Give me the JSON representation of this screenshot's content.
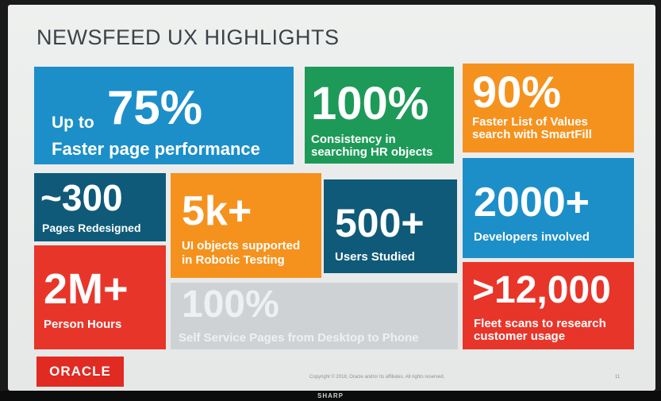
{
  "slide": {
    "title": "NEWSFEED UX HIGHLIGHTS",
    "tiles": [
      {
        "prefix": "Up to",
        "value": "75%",
        "label": "Faster page performance",
        "color": "#1c8fc9"
      },
      {
        "value": "100%",
        "label_line1": "Consistency in",
        "label_line2": "searching HR objects",
        "color": "#1e9a58"
      },
      {
        "value": "90%",
        "label_line1": "Faster List of Values",
        "label_line2": "search with SmartFill",
        "color": "#f5921e"
      },
      {
        "value": "~300",
        "label": "Pages Redesigned",
        "color": "#0f5a78"
      },
      {
        "value": "5k+",
        "label_line1": "UI objects supported",
        "label_line2": "in Robotic Testing",
        "color": "#f5921e"
      },
      {
        "value": "500+",
        "label": "Users Studied",
        "color": "#0f5a78"
      },
      {
        "value": "2000+",
        "label": "Developers involved",
        "color": "#1c8fc9"
      },
      {
        "value": "2M+",
        "label": "Person Hours",
        "color": "#e8352a"
      },
      {
        "value": "100%",
        "label": "Self Service Pages from Desktop to Phone",
        "color": "#cfd2d4"
      },
      {
        "value": ">12,000",
        "label_line1": "Fleet scans to research",
        "label_line2": "customer usage",
        "color": "#e8352a"
      }
    ],
    "footer": {
      "logo": "ORACLE",
      "copyright": "Copyright © 2018, Oracle and/or its affiliates. All rights reserved.",
      "page_number": "11"
    }
  },
  "monitor": {
    "brand": "SHARP"
  }
}
